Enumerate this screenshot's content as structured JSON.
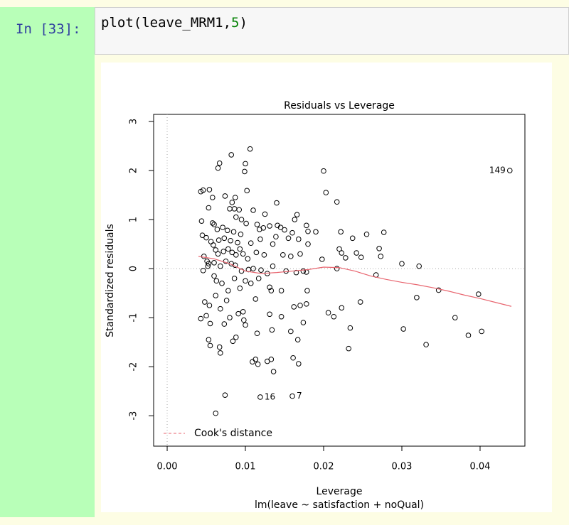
{
  "cell": {
    "prompt": "In [33]:",
    "code": [
      "plot(leave_MRM1,",
      "5",
      ")"
    ]
  },
  "chart_data": {
    "type": "scatter",
    "title": "Residuals vs Leverage",
    "x_label": "Leverage",
    "y_label": "Standardized residuals",
    "subtitle": "lm(leave ~ satisfaction + noQual)",
    "xlim": [
      -0.00173,
      0.04573
    ],
    "ylim": [
      -3.62,
      3.145
    ],
    "xticks": [
      {
        "value": 0,
        "label": "0.00"
      },
      0.01,
      0.02,
      0.03,
      0.04
    ],
    "yticks": [
      -3,
      -2,
      -1,
      0,
      1,
      2,
      3
    ],
    "zero_lines": true,
    "points": {
      "color": "#000000",
      "x": [
        0.0438,
        0.0106,
        0.0082,
        0.0067,
        0.0065,
        0.01,
        0.0099,
        0.02,
        0.0203,
        0.0217,
        0.0043,
        0.0046,
        0.0054,
        0.0058,
        0.0074,
        0.0083,
        0.0087,
        0.0102,
        0.014,
        0.0053,
        0.008,
        0.0086,
        0.0092,
        0.011,
        0.0125,
        0.0166,
        0.0163,
        0.0088,
        0.0095,
        0.0044,
        0.0058,
        0.006,
        0.0064,
        0.0071,
        0.0077,
        0.0085,
        0.0094,
        0.0101,
        0.0115,
        0.0118,
        0.0123,
        0.0131,
        0.0141,
        0.0145,
        0.015,
        0.016,
        0.0178,
        0.018,
        0.019,
        0.0222,
        0.0255,
        0.0277,
        0.0237,
        0.022,
        0.0223,
        0.0242,
        0.0248,
        0.0271,
        0.0273,
        0.0045,
        0.005,
        0.0056,
        0.0059,
        0.0066,
        0.0073,
        0.0081,
        0.009,
        0.0107,
        0.0119,
        0.0139,
        0.0155,
        0.0168,
        0.018,
        0.0135,
        0.0047,
        0.0051,
        0.0053,
        0.0062,
        0.0065,
        0.0072,
        0.0078,
        0.0083,
        0.0088,
        0.0093,
        0.0097,
        0.0103,
        0.0114,
        0.0124,
        0.0148,
        0.0158,
        0.017,
        0.0198,
        0.0228,
        0.0046,
        0.0052,
        0.006,
        0.0068,
        0.0075,
        0.0082,
        0.0087,
        0.0095,
        0.0104,
        0.011,
        0.012,
        0.0128,
        0.0135,
        0.0152,
        0.0165,
        0.0174,
        0.0178,
        0.0217,
        0.0267,
        0.03,
        0.0322,
        0.006,
        0.0063,
        0.007,
        0.0078,
        0.0086,
        0.0093,
        0.01,
        0.0107,
        0.0117,
        0.0131,
        0.0133,
        0.0146,
        0.0179,
        0.0347,
        0.0398,
        0.0319,
        0.0048,
        0.0054,
        0.0062,
        0.0068,
        0.0076,
        0.0091,
        0.0097,
        0.0113,
        0.0131,
        0.0146,
        0.0162,
        0.017,
        0.0178,
        0.0206,
        0.0213,
        0.0223,
        0.0247,
        0.0043,
        0.005,
        0.0055,
        0.0073,
        0.008,
        0.0098,
        0.01,
        0.0115,
        0.0134,
        0.0158,
        0.0167,
        0.0174,
        0.0234,
        0.0302,
        0.0368,
        0.0385,
        0.0402,
        0.0053,
        0.0055,
        0.0067,
        0.0068,
        0.0084,
        0.0088,
        0.0109,
        0.0113,
        0.0116,
        0.0128,
        0.0133,
        0.0136,
        0.0161,
        0.0168,
        0.0232,
        0.0331,
        0.0074,
        0.0119,
        0.016,
        0.0062
      ],
      "y": [
        2.0,
        2.44,
        2.32,
        2.15,
        2.05,
        2.14,
        1.98,
        1.99,
        1.55,
        1.36,
        1.57,
        1.6,
        1.61,
        1.45,
        1.48,
        1.35,
        1.45,
        1.59,
        1.34,
        1.24,
        1.22,
        1.22,
        1.2,
        1.19,
        1.11,
        1.1,
        1.0,
        1.05,
        1.0,
        0.97,
        0.93,
        0.9,
        0.8,
        0.84,
        0.78,
        0.75,
        0.7,
        0.92,
        0.9,
        0.8,
        0.83,
        0.87,
        0.88,
        0.84,
        0.79,
        0.73,
        0.88,
        0.76,
        0.75,
        0.75,
        0.7,
        0.74,
        0.62,
        0.4,
        0.32,
        0.32,
        0.23,
        0.41,
        0.25,
        0.68,
        0.63,
        0.55,
        0.48,
        0.58,
        0.62,
        0.57,
        0.53,
        0.52,
        0.6,
        0.65,
        0.62,
        0.6,
        0.5,
        0.5,
        0.25,
        0.15,
        0.1,
        0.38,
        0.3,
        0.35,
        0.4,
        0.33,
        0.28,
        0.4,
        0.3,
        0.2,
        0.33,
        0.28,
        0.28,
        0.25,
        0.3,
        0.19,
        0.22,
        -0.04,
        0.05,
        0.12,
        0.05,
        0.15,
        0.1,
        0.07,
        -0.05,
        -0.02,
        0.0,
        -0.03,
        -0.1,
        0.05,
        -0.05,
        -0.08,
        -0.05,
        -0.07,
        0.0,
        -0.13,
        0.1,
        0.05,
        -0.15,
        -0.25,
        -0.3,
        -0.45,
        -0.2,
        -0.4,
        -0.25,
        -0.3,
        -0.2,
        -0.38,
        -0.45,
        -0.45,
        -0.45,
        -0.44,
        -0.52,
        -0.59,
        -0.68,
        -0.75,
        -0.55,
        -0.82,
        -0.65,
        -0.92,
        -0.88,
        -0.62,
        -0.93,
        -0.98,
        -0.78,
        -0.75,
        -0.72,
        -0.9,
        -0.98,
        -0.8,
        -0.68,
        -1.02,
        -0.96,
        -1.12,
        -1.13,
        -1.0,
        -1.05,
        -1.15,
        -1.32,
        -1.25,
        -1.28,
        -1.45,
        -1.1,
        -1.21,
        -1.23,
        -1.0,
        -1.36,
        -1.28,
        -1.45,
        -1.57,
        -1.6,
        -1.72,
        -1.48,
        -1.4,
        -1.9,
        -1.85,
        -1.95,
        -1.89,
        -1.85,
        -2.1,
        -1.82,
        -1.94,
        -1.63,
        -1.55,
        -2.58,
        -2.62,
        -2.6,
        -2.95
      ]
    },
    "smooth": {
      "color": "#e8656f",
      "x": [
        0.004,
        0.006,
        0.008,
        0.01,
        0.012,
        0.014,
        0.016,
        0.018,
        0.02,
        0.022,
        0.024,
        0.026,
        0.028,
        0.03,
        0.032,
        0.034,
        0.036,
        0.038,
        0.04,
        0.042,
        0.044
      ],
      "y": [
        0.25,
        0.2,
        0.1,
        -0.05,
        -0.1,
        -0.08,
        -0.05,
        -0.02,
        0.03,
        0.02,
        -0.05,
        -0.15,
        -0.22,
        -0.28,
        -0.33,
        -0.39,
        -0.46,
        -0.54,
        -0.61,
        -0.69,
        -0.77
      ]
    },
    "annotations": [
      {
        "text": "149",
        "x": 0.0438,
        "y": 2.0,
        "side": "left"
      },
      {
        "text": "16",
        "x": 0.0119,
        "y": -2.62,
        "side": "right"
      },
      {
        "text": "7",
        "x": 0.016,
        "y": -2.6,
        "side": "right"
      }
    ],
    "legend": {
      "label": "Cook's distance",
      "color": "#e8656f",
      "position": "bottom-left"
    }
  }
}
